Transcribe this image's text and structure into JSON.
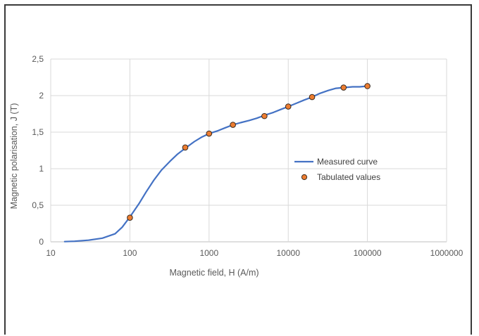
{
  "chart_data": {
    "type": "line",
    "xlabel": "Magnetic field, H (A/m)",
    "ylabel": "Magnetic polarisation, J (T)",
    "x_scale": "log",
    "xlim": [
      10,
      1000000
    ],
    "ylim": [
      0,
      2.5
    ],
    "x_ticks": [
      "10",
      "100",
      "1000",
      "10000",
      "100000",
      "1000000"
    ],
    "y_ticks": [
      "0",
      "0,5",
      "1",
      "1,5",
      "2",
      "2,5"
    ],
    "grid": true,
    "legend_position": "right",
    "colors": {
      "line": "#4472c4",
      "marker_fill": "#ed7d31",
      "marker_edge": "#3a2a1e",
      "grid": "#d9d9d9"
    },
    "series": [
      {
        "name": "Measured curve",
        "kind": "line",
        "x": [
          15,
          20,
          30,
          45,
          65,
          80,
          100,
          130,
          160,
          200,
          250,
          320,
          400,
          500,
          650,
          800,
          1000,
          1300,
          1600,
          2000,
          2500,
          3200,
          4000,
          5000,
          6500,
          8000,
          10000,
          13000,
          16000,
          20000,
          25000,
          32000,
          40000,
          50000,
          65000,
          80000,
          100000
        ],
        "y": [
          0.003,
          0.008,
          0.022,
          0.05,
          0.11,
          0.2,
          0.34,
          0.52,
          0.68,
          0.84,
          0.98,
          1.1,
          1.2,
          1.28,
          1.37,
          1.43,
          1.48,
          1.52,
          1.56,
          1.6,
          1.63,
          1.66,
          1.69,
          1.73,
          1.77,
          1.81,
          1.85,
          1.9,
          1.94,
          1.98,
          2.03,
          2.07,
          2.1,
          2.11,
          2.12,
          2.12,
          2.13
        ]
      },
      {
        "name": "Tabulated values",
        "kind": "markers",
        "x": [
          100,
          500,
          1000,
          2000,
          5000,
          10000,
          20000,
          50000,
          100000
        ],
        "y": [
          0.33,
          1.29,
          1.48,
          1.6,
          1.72,
          1.85,
          1.98,
          2.11,
          2.13
        ]
      }
    ]
  }
}
